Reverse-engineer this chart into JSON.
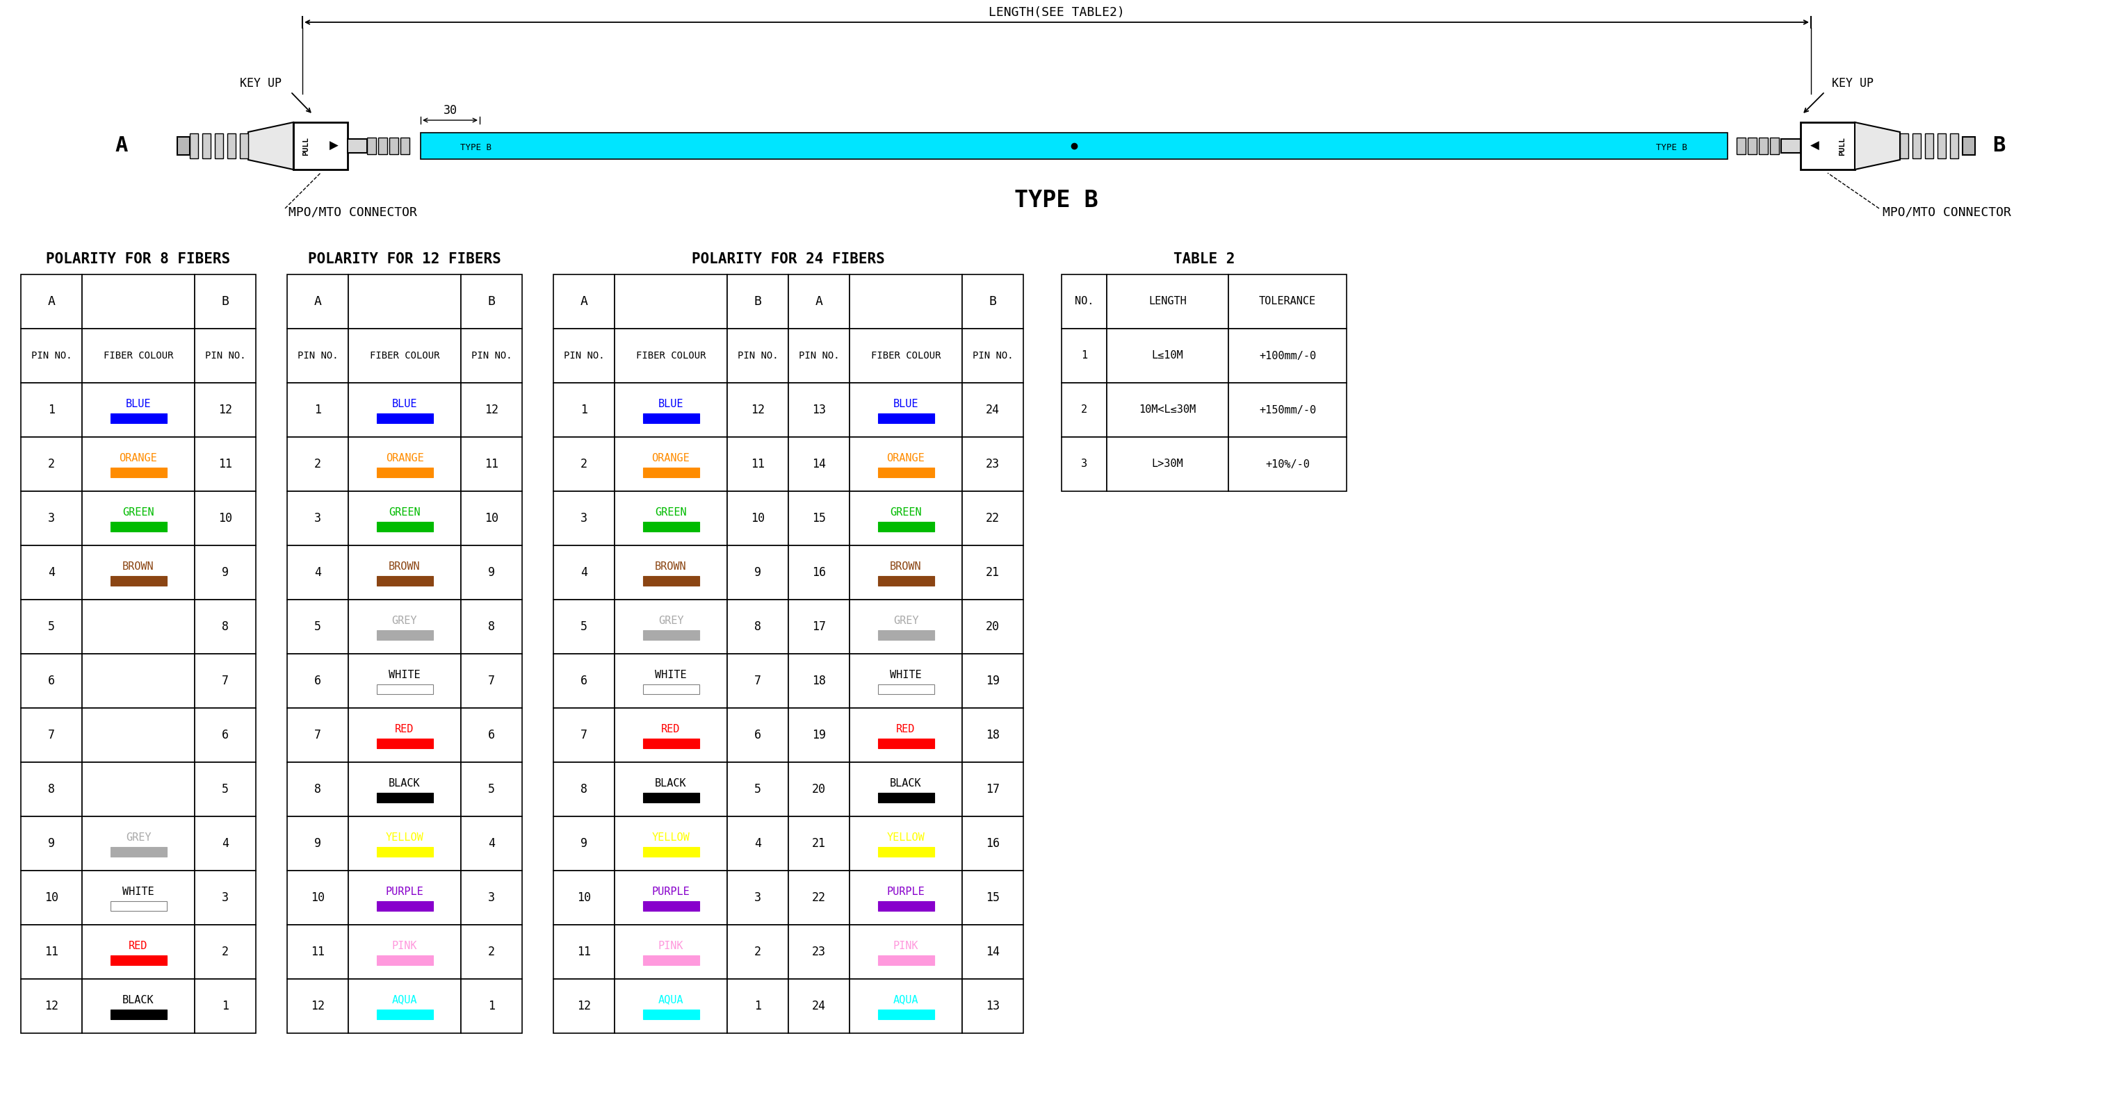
{
  "bg_color": "#ffffff",
  "cable_color": "#00e5ff",
  "length_label": "LENGTH(SEE TABLE2)",
  "label_A": "A",
  "label_B": "B",
  "keyup_label": "KEY UP",
  "connector_label": "MPO/MTO CONNECTOR",
  "dim_30": "30",
  "type_b_label": "TYPE B",
  "table8_title": "POLARITY FOR 8 FIBERS",
  "table12_title": "POLARITY FOR 12 FIBERS",
  "table24_title": "POLARITY FOR 24 FIBERS",
  "table2_title": "TABLE 2",
  "fibers_8": [
    [
      1,
      "BLUE",
      12,
      "#0000ff"
    ],
    [
      2,
      "ORANGE",
      11,
      "#ff8c00"
    ],
    [
      3,
      "GREEN",
      10,
      "#00bb00"
    ],
    [
      4,
      "BROWN",
      9,
      "#8b4513"
    ],
    [
      5,
      "",
      8,
      null
    ],
    [
      6,
      "",
      7,
      null
    ],
    [
      7,
      "",
      6,
      null
    ],
    [
      8,
      "",
      5,
      null
    ],
    [
      9,
      "GREY",
      4,
      "#aaaaaa"
    ],
    [
      10,
      "WHITE",
      3,
      "#ffffff"
    ],
    [
      11,
      "RED",
      2,
      "#ff0000"
    ],
    [
      12,
      "BLACK",
      1,
      "#000000"
    ]
  ],
  "fibers_12": [
    [
      1,
      "BLUE",
      12,
      "#0000ff"
    ],
    [
      2,
      "ORANGE",
      11,
      "#ff8c00"
    ],
    [
      3,
      "GREEN",
      10,
      "#00bb00"
    ],
    [
      4,
      "BROWN",
      9,
      "#8b4513"
    ],
    [
      5,
      "GREY",
      8,
      "#aaaaaa"
    ],
    [
      6,
      "WHITE",
      7,
      "#ffffff"
    ],
    [
      7,
      "RED",
      6,
      "#ff0000"
    ],
    [
      8,
      "BLACK",
      5,
      "#000000"
    ],
    [
      9,
      "YELLOW",
      4,
      "#ffff00"
    ],
    [
      10,
      "PURPLE",
      3,
      "#8800cc"
    ],
    [
      11,
      "PINK",
      2,
      "#ff99dd"
    ],
    [
      12,
      "AQUA",
      1,
      "#00ffff"
    ]
  ],
  "fibers_24_left": [
    [
      1,
      "BLUE",
      12,
      "#0000ff"
    ],
    [
      2,
      "ORANGE",
      11,
      "#ff8c00"
    ],
    [
      3,
      "GREEN",
      10,
      "#00bb00"
    ],
    [
      4,
      "BROWN",
      9,
      "#8b4513"
    ],
    [
      5,
      "GREY",
      8,
      "#aaaaaa"
    ],
    [
      6,
      "WHITE",
      7,
      "#ffffff"
    ],
    [
      7,
      "RED",
      6,
      "#ff0000"
    ],
    [
      8,
      "BLACK",
      5,
      "#000000"
    ],
    [
      9,
      "YELLOW",
      4,
      "#ffff00"
    ],
    [
      10,
      "PURPLE",
      3,
      "#8800cc"
    ],
    [
      11,
      "PINK",
      2,
      "#ff99dd"
    ],
    [
      12,
      "AQUA",
      1,
      "#00ffff"
    ]
  ],
  "fibers_24_right": [
    [
      13,
      "BLUE",
      24,
      "#0000ff"
    ],
    [
      14,
      "ORANGE",
      23,
      "#ff8c00"
    ],
    [
      15,
      "GREEN",
      22,
      "#00bb00"
    ],
    [
      16,
      "BROWN",
      21,
      "#8b4513"
    ],
    [
      17,
      "GREY",
      20,
      "#aaaaaa"
    ],
    [
      18,
      "WHITE",
      19,
      "#ffffff"
    ],
    [
      19,
      "RED",
      18,
      "#ff0000"
    ],
    [
      20,
      "BLACK",
      17,
      "#000000"
    ],
    [
      21,
      "YELLOW",
      16,
      "#ffff00"
    ],
    [
      22,
      "PURPLE",
      15,
      "#8800cc"
    ],
    [
      23,
      "PINK",
      14,
      "#ff99dd"
    ],
    [
      24,
      "AQUA",
      13,
      "#00ffff"
    ]
  ],
  "table2_headers": [
    "NO.",
    "LENGTH",
    "TOLERANCE"
  ],
  "table2_data": [
    [
      "1",
      "L≤10M",
      "+100mm/-0"
    ],
    [
      "2",
      "10M<L≤30M",
      "+150mm/-0"
    ],
    [
      "3",
      "L>30M",
      "+10%/-0"
    ]
  ]
}
